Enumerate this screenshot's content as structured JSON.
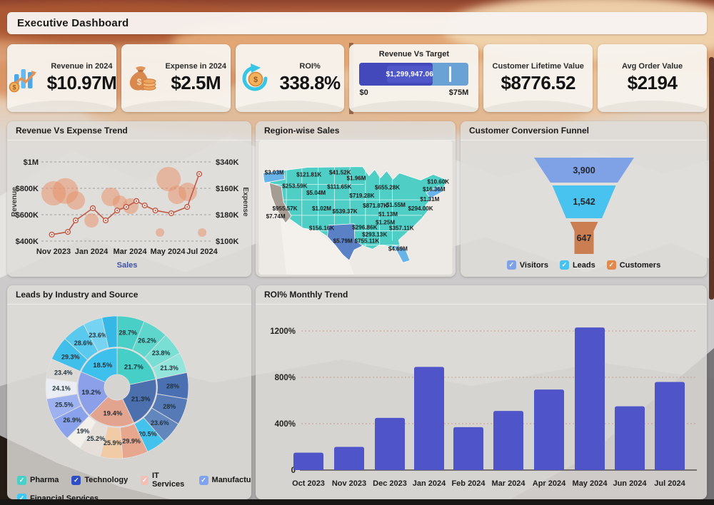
{
  "app": {
    "title": "Executive Dashboard"
  },
  "icons": {
    "checkbox_check": "✓",
    "revenue": "bar-chart-coin-icon",
    "expense": "money-bag-icon",
    "roi": "circular-arrows-coin-icon"
  },
  "kpis": {
    "revenue": {
      "label": "Revenue in 2024",
      "value": "$10.97M"
    },
    "expense": {
      "label": "Expense in 2024",
      "value": "$2.5M"
    },
    "roi": {
      "label": "ROI%",
      "value": "338.8%"
    },
    "target": {
      "label": "Revenue Vs Target",
      "value": "$1,299,947.06",
      "min": "$0",
      "max": "$75M",
      "bar_pct": 67,
      "chip_from_pct": 25,
      "target_pct": 82,
      "colors": {
        "track": "#6aa2d6",
        "bar": "#4348bb",
        "chip": "#5057c9",
        "marker": "#ffffff"
      }
    },
    "clv": {
      "label": "Customer Lifetime Value",
      "value": "$8776.52"
    },
    "aov": {
      "label": "Avg Order Value",
      "value": "$2194"
    }
  },
  "panels": {
    "trend": {
      "title": "Revenue Vs Expense Trend"
    },
    "map": {
      "title": "Region-wise Sales"
    },
    "funnel": {
      "title": "Customer Conversion Funnel"
    },
    "sunburst": {
      "title": "Leads by Industry and Source"
    },
    "roi_trend": {
      "title": "ROI% Monthly Trend"
    }
  },
  "chart_data": [
    {
      "id": "revenue_vs_expense_trend",
      "type": "line",
      "title": "Revenue Vs Expense Trend",
      "y_left": {
        "label": "Revenue",
        "ticks": [
          "$1M",
          "$800K",
          "$600K",
          "$400K"
        ]
      },
      "y_right": {
        "label": "Expense",
        "ticks": [
          "$340K",
          "$160K",
          "$180K",
          "$100K"
        ]
      },
      "x": {
        "label": "Sales",
        "ticks": [
          "Nov 2023",
          "Jan 2024",
          "Mar 2024",
          "May 2024",
          "Jul 2024"
        ]
      },
      "line_points": [
        {
          "x": 0.061,
          "v": 449
        },
        {
          "x": 0.154,
          "v": 470
        },
        {
          "x": 0.2,
          "v": 557
        },
        {
          "x": 0.3,
          "v": 649
        },
        {
          "x": 0.375,
          "v": 557
        },
        {
          "x": 0.442,
          "v": 632
        },
        {
          "x": 0.495,
          "v": 659
        },
        {
          "x": 0.554,
          "v": 703
        },
        {
          "x": 0.603,
          "v": 670
        },
        {
          "x": 0.665,
          "v": 632
        },
        {
          "x": 0.758,
          "v": 611
        },
        {
          "x": 0.851,
          "v": 659
        },
        {
          "x": 0.921,
          "v": 908
        }
      ],
      "bubbles": [
        {
          "x": 0.071,
          "v": 762,
          "r": 17
        },
        {
          "x": 0.14,
          "v": 780,
          "r": 18
        },
        {
          "x": 0.2,
          "v": 708,
          "r": 13
        },
        {
          "x": 0.292,
          "v": 557,
          "r": 10
        },
        {
          "x": 0.404,
          "v": 735,
          "r": 13
        },
        {
          "x": 0.458,
          "v": 692,
          "r": 10
        },
        {
          "x": 0.52,
          "v": 665,
          "r": 11
        },
        {
          "x": 0.692,
          "v": 465,
          "r": 6
        },
        {
          "x": 0.742,
          "v": 870,
          "r": 17
        },
        {
          "x": 0.792,
          "v": 751,
          "r": 13
        },
        {
          "x": 0.854,
          "v": 773,
          "r": 13
        },
        {
          "x": 0.938,
          "v": 465,
          "r": 6
        }
      ],
      "colors": {
        "line": "#bf5a48",
        "bubble": "rgba(232,148,110,0.55)"
      }
    },
    {
      "id": "region_wise_sales",
      "type": "choropleth_map",
      "title": "Region-wise Sales",
      "labels": [
        {
          "t": "$3.03M",
          "x": 23,
          "y": 48
        },
        {
          "t": "$121.81K",
          "x": 72,
          "y": 51
        },
        {
          "t": "$41.52K",
          "x": 116,
          "y": 48
        },
        {
          "t": "$1.96M",
          "x": 139,
          "y": 56
        },
        {
          "t": "$253.59K",
          "x": 52,
          "y": 67
        },
        {
          "t": "$111.65K",
          "x": 115,
          "y": 68
        },
        {
          "t": "$655.28K",
          "x": 183,
          "y": 69
        },
        {
          "t": "$5.04M",
          "x": 82,
          "y": 77
        },
        {
          "t": "$719.28K",
          "x": 147,
          "y": 81
        },
        {
          "t": "$10.60K",
          "x": 255,
          "y": 61
        },
        {
          "t": "$16.36M",
          "x": 249,
          "y": 72
        },
        {
          "t": "$1.31M",
          "x": 243,
          "y": 86
        },
        {
          "t": "$955.57K",
          "x": 38,
          "y": 99
        },
        {
          "t": "$1.02M",
          "x": 90,
          "y": 99
        },
        {
          "t": "$539.37K",
          "x": 123,
          "y": 103
        },
        {
          "t": "$871.87K",
          "x": 166,
          "y": 95
        },
        {
          "t": "$1.55M",
          "x": 195,
          "y": 94
        },
        {
          "t": "$1.13M",
          "x": 184,
          "y": 107
        },
        {
          "t": "$294.00K",
          "x": 230,
          "y": 99
        },
        {
          "t": "$7.74M",
          "x": 25,
          "y": 110
        },
        {
          "t": "$156.16K",
          "x": 90,
          "y": 127
        },
        {
          "t": "$1.25M",
          "x": 180,
          "y": 119
        },
        {
          "t": "$296.86K",
          "x": 151,
          "y": 126
        },
        {
          "t": "$357.11K",
          "x": 203,
          "y": 127
        },
        {
          "t": "$293.13K",
          "x": 165,
          "y": 136
        },
        {
          "t": "$755.11K",
          "x": 154,
          "y": 145
        },
        {
          "t": "$5.79M",
          "x": 120,
          "y": 145
        },
        {
          "t": "$4.69M",
          "x": 198,
          "y": 156
        }
      ],
      "colors": {
        "state": "#4fcec5",
        "california": "#a59c93",
        "texas": "#5a80c6",
        "coastal": "#68b4e8",
        "background": "#edeae5",
        "land": "#f4f1ec",
        "border": "#ffffff"
      }
    },
    {
      "id": "customer_conversion_funnel",
      "type": "funnel",
      "title": "Customer Conversion Funnel",
      "stages": [
        {
          "label": "Visitors",
          "value": "3,900",
          "color": "#7fa1e6",
          "legend_color": "#7fa1e6"
        },
        {
          "label": "Leads",
          "value": "1,542",
          "color": "#48c2ee",
          "legend_color": "#48c2ee"
        },
        {
          "label": "Customers",
          "value": "647",
          "color": "#cb7e52",
          "legend_color": "#e08a4e"
        }
      ]
    },
    {
      "id": "leads_by_industry_and_source",
      "type": "sunburst",
      "title": "Leads by Industry and Source",
      "industries": [
        {
          "name": "Pharma",
          "pct": 21.7,
          "color": "#46cfc6",
          "legend_color": "#4ad0c6",
          "sources": [
            {
              "pct": 28.7,
              "color": "#49cfc5"
            },
            {
              "pct": 26.2,
              "color": "#5fd6cc"
            },
            {
              "pct": 23.8,
              "color": "#79ded4"
            },
            {
              "pct": 21.3,
              "color": "#93e5dc"
            }
          ]
        },
        {
          "name": "Technology",
          "pct": 21.3,
          "color": "#4c6fae",
          "legend_color": "#2f4ec4",
          "sources": [
            {
              "pct": 28,
              "color": "#4a70b2"
            },
            {
              "pct": 28,
              "color": "#567ab6"
            },
            {
              "pct": 23.6,
              "color": "#6287bc"
            },
            {
              "pct": 20.5,
              "color": "#44c2ee"
            }
          ]
        },
        {
          "name": "IT Services",
          "pct": 19.4,
          "color": "#e2a38f",
          "legend_color": "#f2c0b4",
          "sources": [
            {
              "pct": 29.9,
              "color": "#e7a78f"
            },
            {
              "pct": 25.9,
              "color": "#f0cba5"
            },
            {
              "pct": 25.2,
              "color": "#e6dfd9"
            },
            {
              "pct": 19,
              "color": "#f3f0ec"
            }
          ]
        },
        {
          "name": "Manufacturing",
          "pct": 19.2,
          "color": "#8ba0e9",
          "legend_color": "#7fa3ee",
          "sources": [
            {
              "pct": 26.9,
              "color": "#8aa2ec"
            },
            {
              "pct": 25.5,
              "color": "#9fb2f0"
            },
            {
              "pct": 24.1,
              "color": "#eaedf4"
            },
            {
              "pct": 23.4,
              "color": "#dcdad6"
            }
          ]
        },
        {
          "name": "Financial Services",
          "pct": 18.5,
          "color": "#3ec0ec",
          "legend_color": "#3cc8f4",
          "sources": [
            {
              "pct": 29.3,
              "color": "#40bfea"
            },
            {
              "pct": 28.6,
              "color": "#59c9ee"
            },
            {
              "pct": 23.6,
              "color": "#76d4f2"
            },
            {
              "pct": 18.5,
              "color": "#36b8e6",
              "label": ""
            }
          ]
        }
      ]
    },
    {
      "id": "roi_monthly_trend",
      "type": "bar",
      "title": "ROI% Monthly Trend",
      "categories": [
        "Oct 2023",
        "Nov 2023",
        "Dec 2023",
        "Jan 2024",
        "Feb 2024",
        "Mar 2024",
        "Apr 2024",
        "May 2024",
        "Jun 2024",
        "Jul 2024"
      ],
      "values": [
        150,
        200,
        450,
        890,
        370,
        510,
        695,
        1230,
        550,
        760
      ],
      "y_ticks": [
        "1200%",
        "800%",
        "400%",
        "0"
      ],
      "ylim": [
        0,
        1400
      ],
      "bar_color": "#4f55c8"
    }
  ]
}
